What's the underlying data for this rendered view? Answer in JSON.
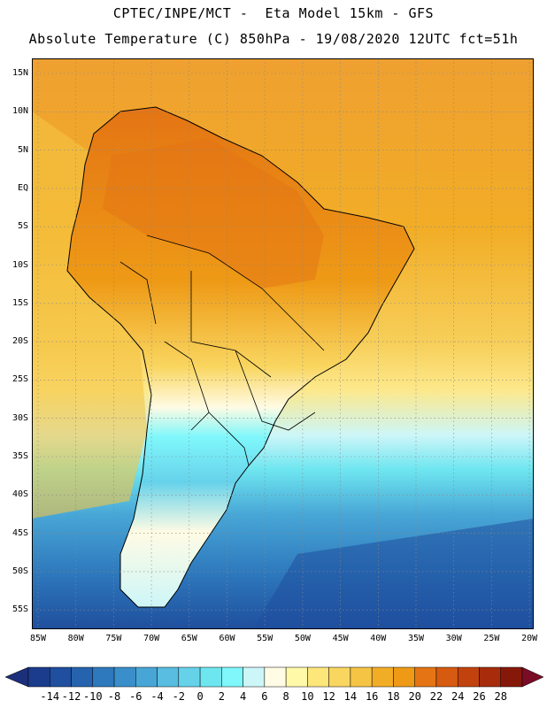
{
  "header": {
    "line1": "CPTEC/INPE/MCT -  Eta Model 15km - GFS",
    "line2": "Absolute Temperature (C) 850hPa - 19/08/2020 12UTC fct=51h"
  },
  "axes": {
    "lat_labels": [
      "15N",
      "10N",
      "5N",
      "EQ",
      "5S",
      "10S",
      "15S",
      "20S",
      "25S",
      "30S",
      "35S",
      "40S",
      "45S",
      "50S",
      "55S"
    ],
    "lon_labels": [
      "85W",
      "80W",
      "75W",
      "70W",
      "65W",
      "60W",
      "55W",
      "50W",
      "45W",
      "40W",
      "35W",
      "30W",
      "25W",
      "20W"
    ]
  },
  "colorbar": {
    "labels": [
      "-14",
      "-12",
      "-10",
      "-8",
      "-6",
      "-4",
      "-2",
      "0",
      "2",
      "4",
      "6",
      "8",
      "10",
      "12",
      "14",
      "16",
      "18",
      "20",
      "22",
      "24",
      "26",
      "28"
    ],
    "colors": [
      "#1b3c8c",
      "#1f4f9e",
      "#2663ae",
      "#2e79bd",
      "#3a8fca",
      "#48a6d6",
      "#58bde0",
      "#66d2ea",
      "#6ee6f0",
      "#7ff7fb",
      "#cdf6f8",
      "#fffbe4",
      "#fff9a8",
      "#fde67a",
      "#f9d660",
      "#f5c445",
      "#f2ad26",
      "#ee9a16",
      "#e47414",
      "#d65a10",
      "#c2420e",
      "#a62c0c",
      "#86180a"
    ],
    "low_color": "#1c2f7a",
    "high_color": "#7a0c25"
  }
}
